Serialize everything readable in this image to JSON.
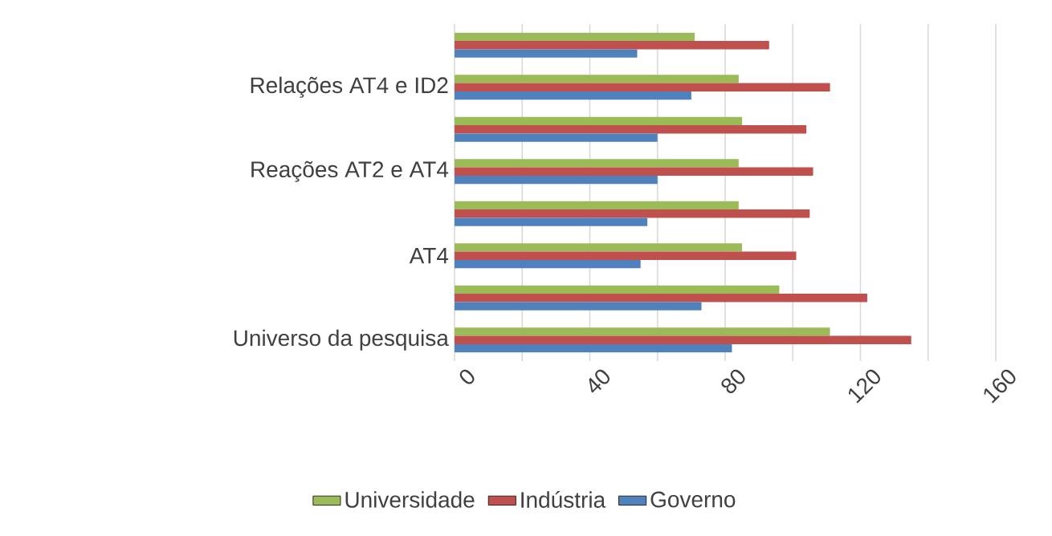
{
  "chart_data": {
    "type": "bar",
    "orientation": "horizontal",
    "categories": [
      null,
      "Relações AT4 e ID2",
      null,
      "Reações AT2 e AT4",
      null,
      "AT4",
      null,
      "Universo da pesquisa"
    ],
    "series": [
      {
        "name": "Universidade",
        "color": "#9bbb59",
        "values": [
          71,
          84,
          85,
          84,
          84,
          85,
          96,
          111
        ]
      },
      {
        "name": "Indústria",
        "color": "#c0504d",
        "values": [
          93,
          111,
          104,
          106,
          105,
          101,
          122,
          135
        ]
      },
      {
        "name": "Governo",
        "color": "#4f81bd",
        "values": [
          54,
          70,
          60,
          60,
          57,
          55,
          73,
          82
        ]
      }
    ],
    "xlim": [
      0,
      160
    ],
    "xticks": [
      0,
      {
        "value": 20,
        "label": null
      },
      40,
      {
        "value": 60,
        "label": null
      },
      80,
      {
        "value": 100,
        "label": null
      },
      120,
      {
        "value": 140,
        "label": null
      },
      160
    ],
    "grid": "x",
    "legend": "bottom"
  }
}
